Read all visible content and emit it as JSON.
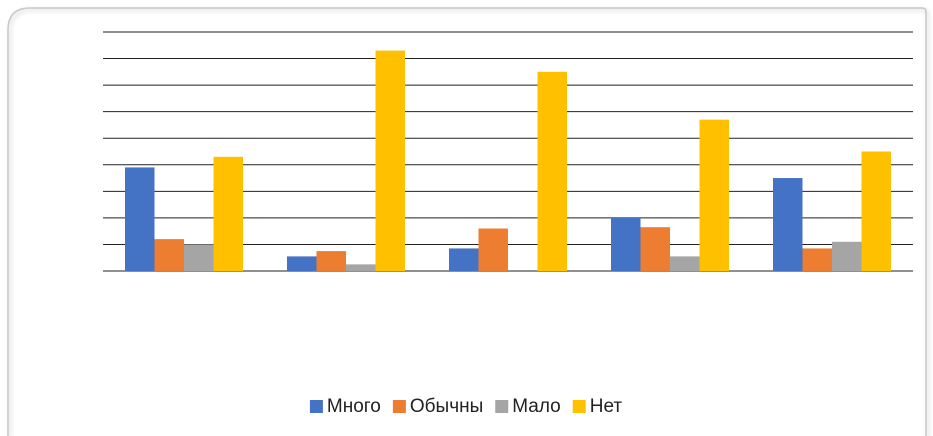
{
  "chart_data": {
    "type": "bar",
    "categories": [
      null,
      null,
      null,
      null,
      null
    ],
    "series": [
      {
        "name": "Много",
        "color": "#4472c4",
        "values": [
          3.9,
          0.55,
          0.85,
          2.0,
          3.5
        ]
      },
      {
        "name": "Обычны",
        "color": "#ed7d31",
        "values": [
          1.2,
          0.75,
          1.6,
          1.65,
          0.85
        ]
      },
      {
        "name": "Мало",
        "color": "#a5a5a5",
        "values": [
          1.0,
          0.25,
          0,
          0.55,
          1.1
        ]
      },
      {
        "name": "Нет",
        "color": "#ffc000",
        "values": [
          4.3,
          8.3,
          7.5,
          5.7,
          4.5
        ]
      }
    ],
    "ylim": [
      0,
      9
    ],
    "yticks": [
      0,
      1,
      2,
      3,
      4,
      5,
      6,
      7,
      8,
      9
    ],
    "grid": true,
    "legend": "bottom"
  }
}
